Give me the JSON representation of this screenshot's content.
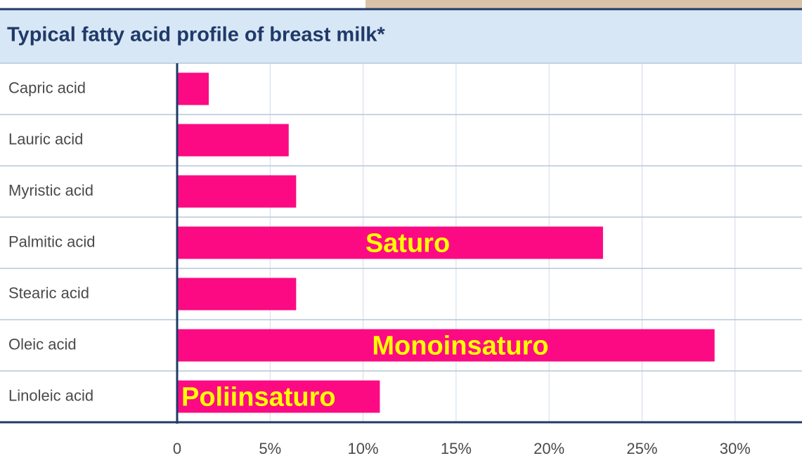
{
  "chart_data": {
    "type": "hbar",
    "title": "Typical fatty acid profile of breast milk*",
    "categories": [
      "Capric acid",
      "Lauric acid",
      "Myristic acid",
      "Palmitic acid",
      "Stearic acid",
      "Oleic acid",
      "Linoleic acid"
    ],
    "values": [
      1.7,
      6.0,
      6.4,
      22.9,
      6.4,
      28.9,
      10.9
    ],
    "color": "#fc0a83",
    "xlim": [
      0,
      33.6
    ],
    "xticks": [
      0,
      {
        "value": 5,
        "label": "5%"
      },
      {
        "value": 10,
        "label": "10%"
      },
      {
        "value": 15,
        "label": "15%"
      },
      {
        "value": 20,
        "label": "20%"
      },
      {
        "value": 25,
        "label": "25%"
      },
      {
        "value": 30,
        "label": "30%"
      }
    ],
    "grid": true,
    "annotations": [
      {
        "text": "Saturo",
        "category": 3
      },
      {
        "text": "Monoinsaturo",
        "category": 5
      },
      {
        "text": "Poliinsaturo",
        "category": 6
      }
    ]
  }
}
